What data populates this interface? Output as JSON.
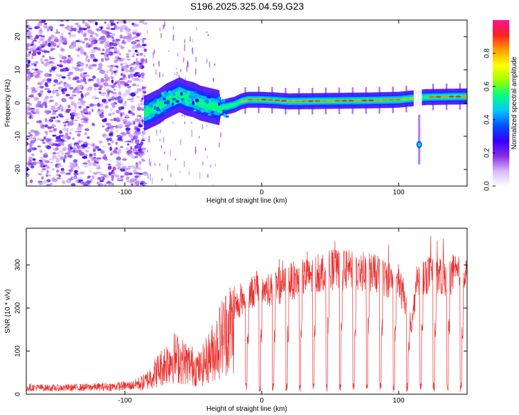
{
  "title": "S196.2025.325.04.59.G23",
  "chart_data": [
    {
      "type": "heatmap",
      "name": "spectrogram",
      "xlabel": "Height of straight line (km)",
      "ylabel": "Frequency (Hz)",
      "xlim": [
        -172,
        150
      ],
      "ylim": [
        -25,
        25
      ],
      "x_ticks": [
        -100,
        0,
        100
      ],
      "y_ticks": [
        -20,
        -10,
        0,
        10,
        20
      ],
      "x_tick_labels": [
        "-100",
        "0",
        "100"
      ],
      "y_tick_labels": [
        "-20",
        "-10",
        "0",
        "10",
        "20"
      ],
      "colorbar": {
        "label": "Normalized spectral amplitude",
        "range": [
          0,
          1
        ],
        "ticks": [
          0.0,
          0.2,
          0.4,
          0.6,
          0.8
        ],
        "tick_labels": [
          "0.0",
          "0.2",
          "0.4",
          "0.6",
          "0.8"
        ],
        "colors": [
          "#ffffff",
          "#d6b8ff",
          "#8a2be2",
          "#3200ff",
          "#0050ff",
          "#00c8ff",
          "#00ff80",
          "#a0ff00",
          "#ffff00",
          "#ffa000",
          "#ff2020",
          "#ff1493"
        ]
      },
      "ridge": {
        "x": [
          -85,
          -80,
          -75,
          -70,
          -65,
          -60,
          -55,
          -50,
          -45,
          -40,
          -35,
          -30,
          -25,
          -20,
          -15,
          -10,
          -5,
          0,
          10,
          20,
          40,
          60,
          80,
          100,
          112,
          120,
          150
        ],
        "frequency": [
          -3,
          -2,
          -1,
          0.5,
          1.5,
          2.5,
          1.5,
          1,
          0,
          -0.5,
          -1,
          -1.5,
          -1,
          -0.5,
          0.5,
          1,
          1,
          1,
          0.8,
          0.5,
          0.6,
          0.7,
          0.8,
          1.0,
          1.5,
          1.8,
          2.0
        ]
      },
      "secondary_feature": {
        "x": 115,
        "frequency": -12.5
      }
    },
    {
      "type": "line",
      "name": "snr",
      "xlabel": "Height of straight line (km)",
      "ylabel": "SNR (10 * v/v)",
      "xlim": [
        -172,
        150
      ],
      "ylim": [
        0,
        385
      ],
      "x_ticks": [
        -100,
        0,
        100
      ],
      "y_ticks": [
        0,
        100,
        200,
        300
      ],
      "x_tick_labels": [
        "-100",
        "0",
        "100"
      ],
      "y_tick_labels": [
        "0",
        "100",
        "200",
        "300"
      ],
      "color": "#e8302e",
      "series": [
        {
          "name": "SNR",
          "x": [
            -172,
            -150,
            -130,
            -110,
            -95,
            -85,
            -75,
            -65,
            -55,
            -45,
            -35,
            -25,
            -15,
            -5,
            0,
            10,
            20,
            30,
            40,
            50,
            60,
            70,
            80,
            90,
            100,
            105,
            110,
            113,
            120,
            130,
            140,
            150
          ],
          "envelope": [
            20,
            18,
            20,
            22,
            25,
            40,
            80,
            120,
            100,
            80,
            140,
            210,
            240,
            270,
            270,
            270,
            290,
            300,
            310,
            320,
            320,
            315,
            315,
            300,
            290,
            230,
            180,
            300,
            310,
            300,
            310,
            300
          ],
          "dropout_start_x": -12,
          "dropout_spacing_km": 9.8,
          "dropout_min": 5
        }
      ]
    }
  ]
}
